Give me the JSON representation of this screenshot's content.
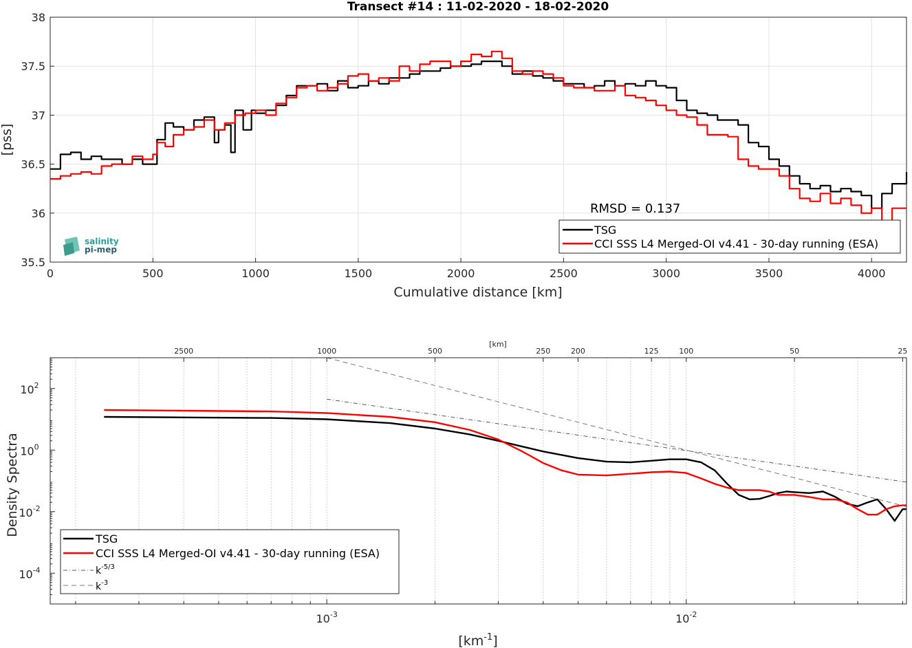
{
  "chart_data": [
    {
      "type": "line",
      "title": "Transect #14 : 11-02-2020 - 18-02-2020",
      "xlabel": "Cumulative distance [km]",
      "ylabel": "[pss]",
      "xlim": [
        0,
        4170
      ],
      "ylim": [
        35.5,
        38
      ],
      "xticks": [
        0,
        500,
        1000,
        1500,
        2000,
        2500,
        3000,
        3500,
        4000
      ],
      "xtick_labels": [
        "0",
        "500",
        "1000",
        "1500",
        "2000",
        "2500",
        "3000",
        "3500",
        "4000"
      ],
      "yticks": [
        35.5,
        36,
        36.5,
        37,
        37.5,
        38
      ],
      "ytick_labels": [
        "35.5",
        "36",
        "36.5",
        "37",
        "37.5",
        "38"
      ],
      "grid": true,
      "legend_position": "bottom-right",
      "annotation": "RMSD = 0.137",
      "logo": {
        "line1": "salinity",
        "line2": "pi-mep"
      },
      "series": [
        {
          "name": "TSG",
          "color": "#000000",
          "x": [
            0,
            50,
            100,
            150,
            200,
            250,
            300,
            350,
            400,
            450,
            500,
            520,
            560,
            600,
            650,
            700,
            750,
            800,
            820,
            850,
            880,
            900,
            940,
            980,
            1000,
            1050,
            1100,
            1150,
            1200,
            1250,
            1300,
            1350,
            1400,
            1450,
            1500,
            1550,
            1600,
            1650,
            1700,
            1750,
            1800,
            1850,
            1900,
            1950,
            2000,
            2050,
            2100,
            2150,
            2200,
            2250,
            2300,
            2350,
            2400,
            2450,
            2500,
            2550,
            2600,
            2650,
            2700,
            2750,
            2800,
            2850,
            2900,
            2950,
            3000,
            3050,
            3100,
            3150,
            3200,
            3250,
            3300,
            3350,
            3400,
            3450,
            3500,
            3550,
            3600,
            3650,
            3700,
            3750,
            3800,
            3850,
            3900,
            3950,
            4000,
            4050,
            4100,
            4170
          ],
          "y": [
            36.45,
            36.6,
            36.62,
            36.55,
            36.58,
            36.55,
            36.55,
            36.5,
            36.55,
            36.5,
            36.5,
            36.75,
            36.92,
            36.88,
            36.85,
            36.95,
            36.98,
            36.72,
            36.85,
            36.9,
            36.62,
            37.05,
            36.85,
            37.05,
            37.02,
            37.05,
            37.1,
            37.2,
            37.3,
            37.3,
            37.32,
            37.25,
            37.35,
            37.28,
            37.3,
            37.35,
            37.32,
            37.38,
            37.38,
            37.42,
            37.45,
            37.45,
            37.48,
            37.5,
            37.5,
            37.52,
            37.55,
            37.55,
            37.5,
            37.42,
            37.45,
            37.4,
            37.38,
            37.35,
            37.32,
            37.32,
            37.28,
            37.3,
            37.35,
            37.3,
            37.32,
            37.3,
            37.35,
            37.3,
            37.28,
            37.15,
            37.05,
            37.02,
            37.0,
            36.95,
            36.95,
            36.9,
            36.72,
            36.68,
            36.55,
            36.48,
            36.38,
            36.3,
            36.25,
            36.28,
            36.22,
            36.25,
            36.22,
            36.18,
            36.05,
            36.2,
            36.3,
            36.42
          ]
        },
        {
          "name": "CCI SSS L4 Merged-OI v4.41 - 30-day running (ESA)",
          "color": "#ff0000",
          "x": [
            0,
            50,
            100,
            150,
            200,
            250,
            300,
            350,
            400,
            450,
            500,
            520,
            560,
            600,
            650,
            700,
            750,
            800,
            850,
            900,
            950,
            1000,
            1050,
            1100,
            1150,
            1200,
            1250,
            1300,
            1350,
            1400,
            1450,
            1500,
            1550,
            1600,
            1650,
            1700,
            1750,
            1800,
            1850,
            1900,
            1950,
            2000,
            2050,
            2100,
            2150,
            2200,
            2250,
            2300,
            2350,
            2400,
            2450,
            2500,
            2550,
            2600,
            2650,
            2700,
            2750,
            2800,
            2850,
            2900,
            2950,
            3000,
            3050,
            3100,
            3150,
            3200,
            3250,
            3300,
            3350,
            3400,
            3450,
            3500,
            3550,
            3600,
            3650,
            3700,
            3750,
            3800,
            3850,
            3900,
            3950,
            4000,
            4050,
            4100,
            4170
          ],
          "y": [
            36.35,
            36.38,
            36.4,
            36.42,
            36.4,
            36.48,
            36.5,
            36.5,
            36.58,
            36.55,
            36.6,
            36.72,
            36.68,
            36.8,
            36.85,
            36.88,
            36.95,
            36.85,
            36.92,
            37.0,
            37.02,
            37.05,
            37.0,
            37.12,
            37.18,
            37.28,
            37.3,
            37.25,
            37.28,
            37.32,
            37.4,
            37.42,
            37.35,
            37.38,
            37.35,
            37.5,
            37.45,
            37.52,
            37.55,
            37.55,
            37.5,
            37.55,
            37.62,
            37.6,
            37.65,
            37.58,
            37.45,
            37.42,
            37.45,
            37.42,
            37.38,
            37.3,
            37.28,
            37.28,
            37.25,
            37.25,
            37.3,
            37.2,
            37.18,
            37.15,
            37.1,
            37.05,
            37.0,
            36.98,
            36.9,
            36.8,
            36.8,
            36.78,
            36.55,
            36.48,
            36.45,
            36.45,
            36.38,
            36.25,
            36.15,
            36.12,
            36.2,
            36.1,
            36.15,
            36.08,
            36.0,
            36.05,
            35.92,
            36.05,
            36.05
          ]
        }
      ]
    },
    {
      "type": "line",
      "xlabel": "[km",
      "xlabel_sup": "-1",
      "xlabel_end": "]",
      "ylabel": "Density Spectra",
      "xscale": "log",
      "yscale": "log",
      "xlim": [
        0.00017,
        0.041
      ],
      "ylim": [
        1e-05,
        1000
      ],
      "xticks": [
        0.001,
        0.01
      ],
      "xtick_labels": [
        {
          "base": "10",
          "exp": "-3"
        },
        {
          "base": "10",
          "exp": "-2"
        }
      ],
      "yticks": [
        0.0001,
        0.01,
        1,
        100
      ],
      "ytick_labels": [
        {
          "base": "10",
          "exp": "-4"
        },
        {
          "base": "10",
          "exp": "-2"
        },
        {
          "base": "10",
          "exp": "0"
        },
        {
          "base": "10",
          "exp": "2"
        }
      ],
      "top_axis": {
        "label": "[km]",
        "ticks": [
          2500,
          1000,
          500,
          250,
          200,
          125,
          100,
          50,
          25
        ],
        "tick_labels": [
          "2500",
          "1000",
          "500",
          "250",
          "200",
          "125",
          "100",
          "50",
          "25"
        ]
      },
      "grid": "x-minor",
      "legend_position": "bottom-left",
      "series": [
        {
          "name": "TSG",
          "color": "#000000",
          "x": [
            0.00024,
            0.0004,
            0.0007,
            0.001,
            0.0015,
            0.002,
            0.0025,
            0.003,
            0.0035,
            0.004,
            0.005,
            0.006,
            0.007,
            0.008,
            0.009,
            0.01,
            0.011,
            0.012,
            0.013,
            0.014,
            0.015,
            0.016,
            0.017,
            0.018,
            0.019,
            0.02,
            0.022,
            0.024,
            0.026,
            0.028,
            0.03,
            0.032,
            0.034,
            0.036,
            0.038,
            0.04,
            0.041
          ],
          "y": [
            12.0,
            11.5,
            11.0,
            10.0,
            7.5,
            5.0,
            3.2,
            2.0,
            1.3,
            0.9,
            0.55,
            0.42,
            0.4,
            0.45,
            0.5,
            0.5,
            0.4,
            0.22,
            0.08,
            0.035,
            0.025,
            0.026,
            0.032,
            0.04,
            0.045,
            0.043,
            0.04,
            0.045,
            0.03,
            0.018,
            0.015,
            0.02,
            0.025,
            0.012,
            0.005,
            0.012,
            0.012
          ]
        },
        {
          "name": "CCI SSS L4 Merged-OI v4.41 - 30-day running (ESA)",
          "color": "#ff0000",
          "x": [
            0.00024,
            0.0004,
            0.0007,
            0.001,
            0.0015,
            0.002,
            0.0025,
            0.003,
            0.0035,
            0.004,
            0.0045,
            0.005,
            0.006,
            0.007,
            0.008,
            0.009,
            0.01,
            0.011,
            0.012,
            0.013,
            0.014,
            0.015,
            0.016,
            0.017,
            0.018,
            0.019,
            0.02,
            0.022,
            0.024,
            0.026,
            0.028,
            0.03,
            0.032,
            0.034,
            0.036,
            0.038,
            0.04,
            0.041
          ],
          "y": [
            20.0,
            19.0,
            18.0,
            16.0,
            12.0,
            8.0,
            4.5,
            2.2,
            0.9,
            0.38,
            0.22,
            0.16,
            0.15,
            0.17,
            0.19,
            0.2,
            0.18,
            0.12,
            0.08,
            0.06,
            0.05,
            0.05,
            0.05,
            0.045,
            0.035,
            0.035,
            0.035,
            0.03,
            0.025,
            0.025,
            0.02,
            0.012,
            0.008,
            0.008,
            0.012,
            0.015,
            0.016,
            0.016
          ]
        },
        {
          "name": "k",
          "name_sup": "-5/3",
          "color": "#555555",
          "dash": "dashdot",
          "x": [
            0.001,
            0.041
          ],
          "y": [
            45,
            0.091
          ]
        },
        {
          "name": "k",
          "name_sup": "-3",
          "color": "#777777",
          "dash": "dash",
          "x": [
            0.001,
            0.041
          ],
          "y": [
            1000,
            0.0145
          ]
        }
      ]
    }
  ]
}
